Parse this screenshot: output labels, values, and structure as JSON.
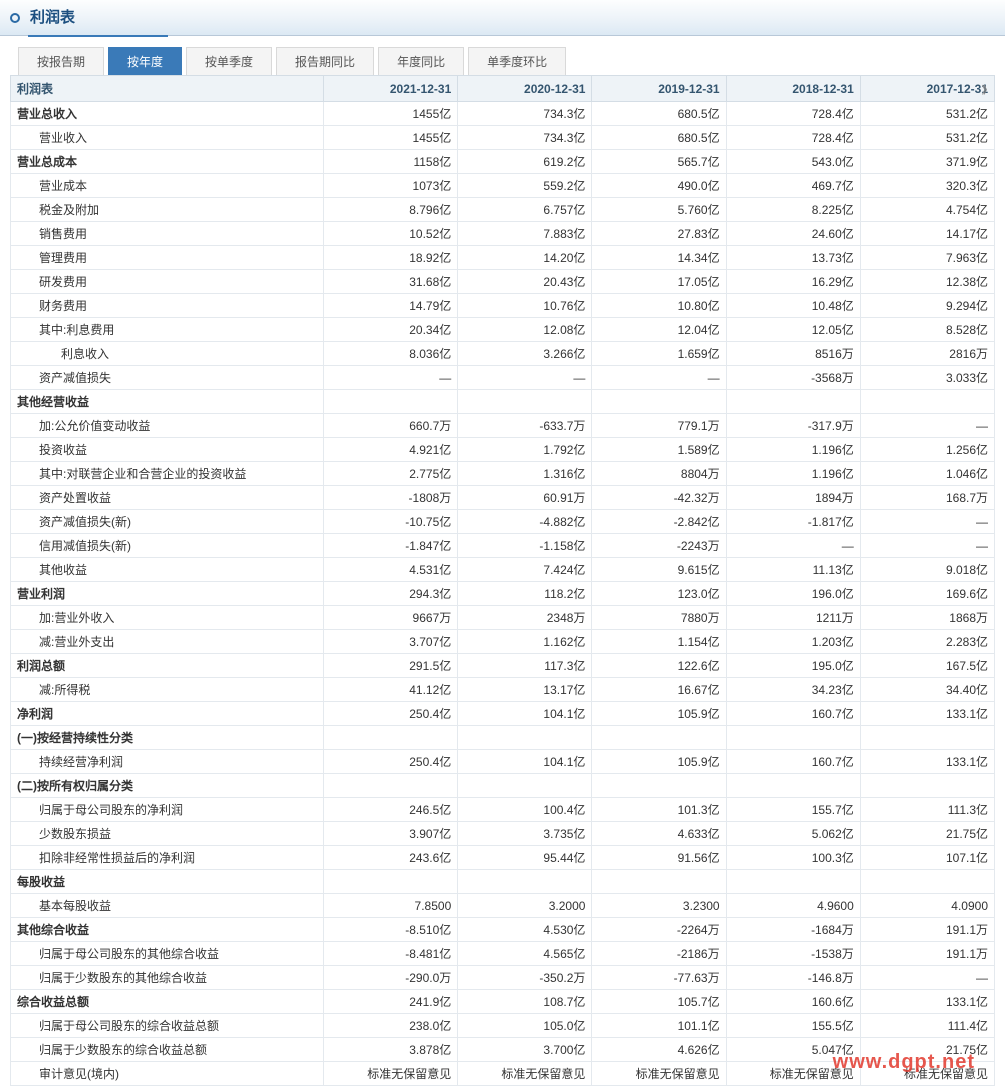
{
  "page_title": "利润表",
  "tabs": [
    "按报告期",
    "按年度",
    "按单季度",
    "报告期同比",
    "年度同比",
    "单季度环比"
  ],
  "active_tab_index": 1,
  "table_header_first": "利润表",
  "columns": [
    "2021-12-31",
    "2020-12-31",
    "2019-12-31",
    "2018-12-31",
    "2017-12-31"
  ],
  "colors": {
    "header_gradient_top": "#fdfefe",
    "header_gradient_bottom": "#dce9f4",
    "accent": "#3a7ab8",
    "title_color": "#1c4f80",
    "th_bg": "#eef3f7",
    "border": "#d4dde5",
    "cell_border": "#e4e9ee",
    "watermark": "#e23a2f"
  },
  "watermark": "www.dgpt.net",
  "rows": [
    {
      "label": "营业总收入",
      "indent": 0,
      "bold": true,
      "vals": [
        "1455亿",
        "734.3亿",
        "680.5亿",
        "728.4亿",
        "531.2亿"
      ]
    },
    {
      "label": "营业收入",
      "indent": 1,
      "bold": false,
      "vals": [
        "1455亿",
        "734.3亿",
        "680.5亿",
        "728.4亿",
        "531.2亿"
      ]
    },
    {
      "label": "营业总成本",
      "indent": 0,
      "bold": true,
      "vals": [
        "1158亿",
        "619.2亿",
        "565.7亿",
        "543.0亿",
        "371.9亿"
      ]
    },
    {
      "label": "营业成本",
      "indent": 1,
      "bold": false,
      "vals": [
        "1073亿",
        "559.2亿",
        "490.0亿",
        "469.7亿",
        "320.3亿"
      ]
    },
    {
      "label": "税金及附加",
      "indent": 1,
      "bold": false,
      "vals": [
        "8.796亿",
        "6.757亿",
        "5.760亿",
        "8.225亿",
        "4.754亿"
      ]
    },
    {
      "label": "销售费用",
      "indent": 1,
      "bold": false,
      "vals": [
        "10.52亿",
        "7.883亿",
        "27.83亿",
        "24.60亿",
        "14.17亿"
      ]
    },
    {
      "label": "管理费用",
      "indent": 1,
      "bold": false,
      "vals": [
        "18.92亿",
        "14.20亿",
        "14.34亿",
        "13.73亿",
        "7.963亿"
      ]
    },
    {
      "label": "研发费用",
      "indent": 1,
      "bold": false,
      "vals": [
        "31.68亿",
        "20.43亿",
        "17.05亿",
        "16.29亿",
        "12.38亿"
      ]
    },
    {
      "label": "财务费用",
      "indent": 1,
      "bold": false,
      "vals": [
        "14.79亿",
        "10.76亿",
        "10.80亿",
        "10.48亿",
        "9.294亿"
      ]
    },
    {
      "label": "其中:利息费用",
      "indent": 1,
      "bold": false,
      "vals": [
        "20.34亿",
        "12.08亿",
        "12.04亿",
        "12.05亿",
        "8.528亿"
      ]
    },
    {
      "label": "利息收入",
      "indent": 2,
      "bold": false,
      "vals": [
        "8.036亿",
        "3.266亿",
        "1.659亿",
        "8516万",
        "2816万"
      ]
    },
    {
      "label": "资产减值损失",
      "indent": 1,
      "bold": false,
      "vals": [
        "—",
        "—",
        "—",
        "-3568万",
        "3.033亿"
      ]
    },
    {
      "label": "其他经营收益",
      "indent": 0,
      "bold": true,
      "vals": [
        "",
        "",
        "",
        "",
        ""
      ]
    },
    {
      "label": "加:公允价值变动收益",
      "indent": 1,
      "bold": false,
      "vals": [
        "660.7万",
        "-633.7万",
        "779.1万",
        "-317.9万",
        "—"
      ]
    },
    {
      "label": "投资收益",
      "indent": 1,
      "bold": false,
      "vals": [
        "4.921亿",
        "1.792亿",
        "1.589亿",
        "1.196亿",
        "1.256亿"
      ]
    },
    {
      "label": "其中:对联营企业和合营企业的投资收益",
      "indent": 1,
      "bold": false,
      "vals": [
        "2.775亿",
        "1.316亿",
        "8804万",
        "1.196亿",
        "1.046亿"
      ]
    },
    {
      "label": "资产处置收益",
      "indent": 1,
      "bold": false,
      "vals": [
        "-1808万",
        "60.91万",
        "-42.32万",
        "1894万",
        "168.7万"
      ]
    },
    {
      "label": "资产减值损失(新)",
      "indent": 1,
      "bold": false,
      "vals": [
        "-10.75亿",
        "-4.882亿",
        "-2.842亿",
        "-1.817亿",
        "—"
      ]
    },
    {
      "label": "信用减值损失(新)",
      "indent": 1,
      "bold": false,
      "vals": [
        "-1.847亿",
        "-1.158亿",
        "-2243万",
        "—",
        "—"
      ]
    },
    {
      "label": "其他收益",
      "indent": 1,
      "bold": false,
      "vals": [
        "4.531亿",
        "7.424亿",
        "9.615亿",
        "11.13亿",
        "9.018亿"
      ]
    },
    {
      "label": "营业利润",
      "indent": 0,
      "bold": true,
      "vals": [
        "294.3亿",
        "118.2亿",
        "123.0亿",
        "196.0亿",
        "169.6亿"
      ]
    },
    {
      "label": "加:营业外收入",
      "indent": 1,
      "bold": false,
      "vals": [
        "9667万",
        "2348万",
        "7880万",
        "1211万",
        "1868万"
      ]
    },
    {
      "label": "减:营业外支出",
      "indent": 1,
      "bold": false,
      "vals": [
        "3.707亿",
        "1.162亿",
        "1.154亿",
        "1.203亿",
        "2.283亿"
      ]
    },
    {
      "label": "利润总额",
      "indent": 0,
      "bold": true,
      "vals": [
        "291.5亿",
        "117.3亿",
        "122.6亿",
        "195.0亿",
        "167.5亿"
      ]
    },
    {
      "label": "减:所得税",
      "indent": 1,
      "bold": false,
      "vals": [
        "41.12亿",
        "13.17亿",
        "16.67亿",
        "34.23亿",
        "34.40亿"
      ]
    },
    {
      "label": "净利润",
      "indent": 0,
      "bold": true,
      "vals": [
        "250.4亿",
        "104.1亿",
        "105.9亿",
        "160.7亿",
        "133.1亿"
      ]
    },
    {
      "label": "(一)按经营持续性分类",
      "indent": 0,
      "bold": true,
      "vals": [
        "",
        "",
        "",
        "",
        ""
      ]
    },
    {
      "label": "持续经营净利润",
      "indent": 1,
      "bold": false,
      "vals": [
        "250.4亿",
        "104.1亿",
        "105.9亿",
        "160.7亿",
        "133.1亿"
      ]
    },
    {
      "label": "(二)按所有权归属分类",
      "indent": 0,
      "bold": true,
      "vals": [
        "",
        "",
        "",
        "",
        ""
      ]
    },
    {
      "label": "归属于母公司股东的净利润",
      "indent": 1,
      "bold": false,
      "vals": [
        "246.5亿",
        "100.4亿",
        "101.3亿",
        "155.7亿",
        "111.3亿"
      ]
    },
    {
      "label": "少数股东损益",
      "indent": 1,
      "bold": false,
      "vals": [
        "3.907亿",
        "3.735亿",
        "4.633亿",
        "5.062亿",
        "21.75亿"
      ]
    },
    {
      "label": "扣除非经常性损益后的净利润",
      "indent": 1,
      "bold": false,
      "vals": [
        "243.6亿",
        "95.44亿",
        "91.56亿",
        "100.3亿",
        "107.1亿"
      ]
    },
    {
      "label": "每股收益",
      "indent": 0,
      "bold": true,
      "vals": [
        "",
        "",
        "",
        "",
        ""
      ]
    },
    {
      "label": "基本每股收益",
      "indent": 1,
      "bold": false,
      "vals": [
        "7.8500",
        "3.2000",
        "3.2300",
        "4.9600",
        "4.0900"
      ]
    },
    {
      "label": "其他综合收益",
      "indent": 0,
      "bold": true,
      "vals": [
        "-8.510亿",
        "4.530亿",
        "-2264万",
        "-1684万",
        "191.1万"
      ]
    },
    {
      "label": "归属于母公司股东的其他综合收益",
      "indent": 1,
      "bold": false,
      "vals": [
        "-8.481亿",
        "4.565亿",
        "-2186万",
        "-1538万",
        "191.1万"
      ]
    },
    {
      "label": "归属于少数股东的其他综合收益",
      "indent": 1,
      "bold": false,
      "vals": [
        "-290.0万",
        "-350.2万",
        "-77.63万",
        "-146.8万",
        "—"
      ]
    },
    {
      "label": "综合收益总额",
      "indent": 0,
      "bold": true,
      "vals": [
        "241.9亿",
        "108.7亿",
        "105.7亿",
        "160.6亿",
        "133.1亿"
      ]
    },
    {
      "label": "归属于母公司股东的综合收益总额",
      "indent": 1,
      "bold": false,
      "vals": [
        "238.0亿",
        "105.0亿",
        "101.1亿",
        "155.5亿",
        "111.4亿"
      ]
    },
    {
      "label": "归属于少数股东的综合收益总额",
      "indent": 1,
      "bold": false,
      "vals": [
        "3.878亿",
        "3.700亿",
        "4.626亿",
        "5.047亿",
        "21.75亿"
      ]
    },
    {
      "label": "审计意见(境内)",
      "indent": 1,
      "bold": false,
      "vals": [
        "标准无保留意见",
        "标准无保留意见",
        "标准无保留意见",
        "标准无保留意见",
        "标准无保留意见"
      ]
    }
  ]
}
